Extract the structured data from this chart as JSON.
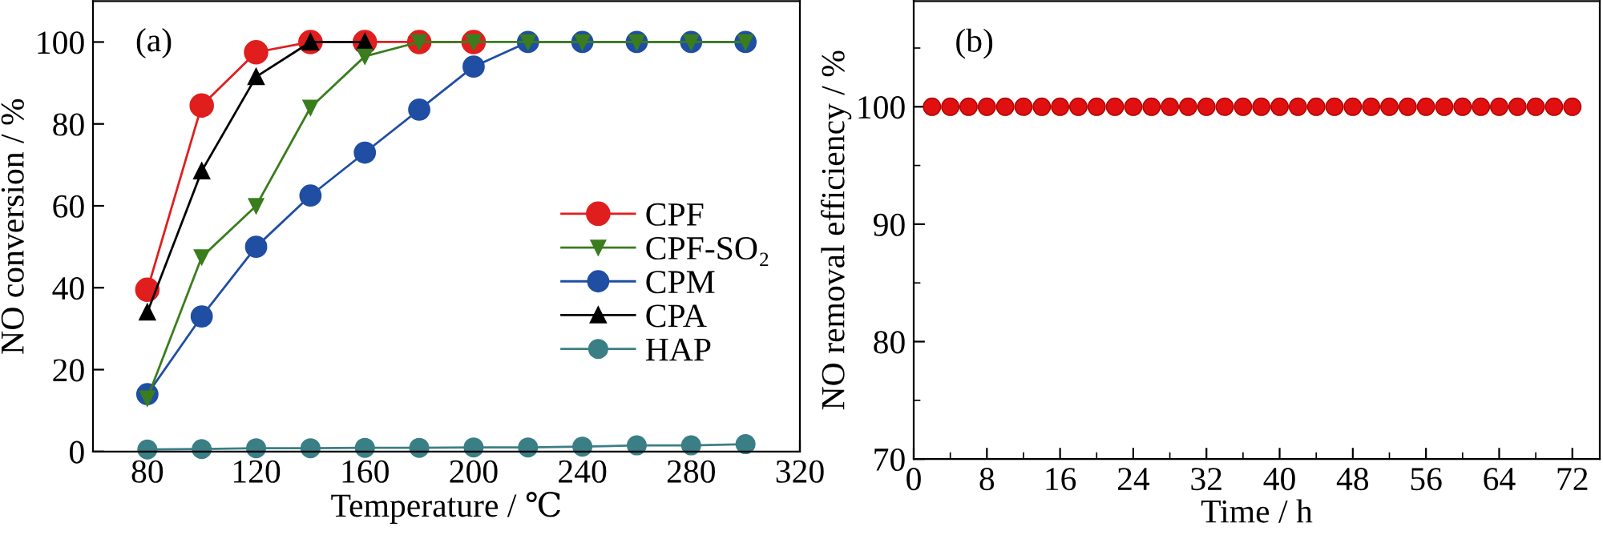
{
  "chart_data": [
    {
      "type": "line",
      "xlabel": "Temperature / ℃",
      "ylabel": "NO conversion / %",
      "annotations": [
        "(a)"
      ],
      "x": [
        80,
        100,
        120,
        140,
        160,
        180,
        200,
        220,
        240,
        260,
        280,
        300
      ],
      "xlim": [
        60,
        320
      ],
      "xticks": [
        80,
        120,
        160,
        200,
        240,
        280,
        320
      ],
      "ylim": [
        0,
        110
      ],
      "yticks": [
        0,
        20,
        40,
        60,
        80,
        100
      ],
      "legend": "right",
      "grid": false,
      "series": [
        {
          "name": "CPF",
          "color": "#e01e1e",
          "marker": "circle",
          "values": [
            39.5,
            84.5,
            97.5,
            100,
            100,
            100,
            100,
            null,
            null,
            null,
            null,
            null
          ]
        },
        {
          "name": "CPF-SO₂",
          "color": "#3a7d1e",
          "marker": "triangle_down",
          "values": [
            13,
            47.5,
            60,
            84,
            96.5,
            100,
            100,
            100,
            100,
            100,
            100,
            100
          ]
        },
        {
          "name": "CPM",
          "color": "#1f4ea3",
          "marker": "circle",
          "values": [
            14,
            33,
            50,
            62.5,
            73,
            83.5,
            94,
            100,
            100,
            100,
            100,
            100
          ]
        },
        {
          "name": "CPA",
          "color": "#000000",
          "marker": "triangle",
          "values": [
            34,
            68.5,
            91.5,
            100,
            100,
            null,
            null,
            null,
            null,
            null,
            null,
            null
          ]
        },
        {
          "name": "HAP",
          "color": "#3b7f86",
          "marker": "circle",
          "values": [
            0.5,
            0.6,
            0.8,
            0.8,
            0.9,
            0.9,
            1.0,
            1.0,
            1.2,
            1.5,
            1.5,
            1.8
          ]
        }
      ]
    },
    {
      "type": "scatter",
      "xlabel": "Time / h",
      "ylabel": "NO removal efficiency / %",
      "annotations": [
        "(b)"
      ],
      "x": [
        2,
        4,
        6,
        8,
        10,
        12,
        14,
        16,
        18,
        20,
        22,
        24,
        26,
        28,
        30,
        32,
        34,
        36,
        38,
        40,
        42,
        44,
        46,
        48,
        50,
        52,
        54,
        56,
        58,
        60,
        62,
        64,
        66,
        68,
        70,
        72
      ],
      "xlim": [
        0,
        75
      ],
      "xticks": [
        0,
        8,
        16,
        24,
        32,
        40,
        48,
        56,
        64,
        72
      ],
      "ylim": [
        70,
        109
      ],
      "yticks": [
        70,
        80,
        90,
        100
      ],
      "grid": false,
      "marker": "circle",
      "series": [
        {
          "color": "#e01010",
          "values": [
            100,
            100,
            100,
            100,
            100,
            100,
            100,
            100,
            100,
            100,
            100,
            100,
            100,
            100,
            100,
            100,
            100,
            100,
            100,
            100,
            100,
            100,
            100,
            100,
            100,
            100,
            100,
            100,
            100,
            100,
            100,
            100,
            100,
            100,
            100,
            100
          ]
        }
      ]
    }
  ]
}
